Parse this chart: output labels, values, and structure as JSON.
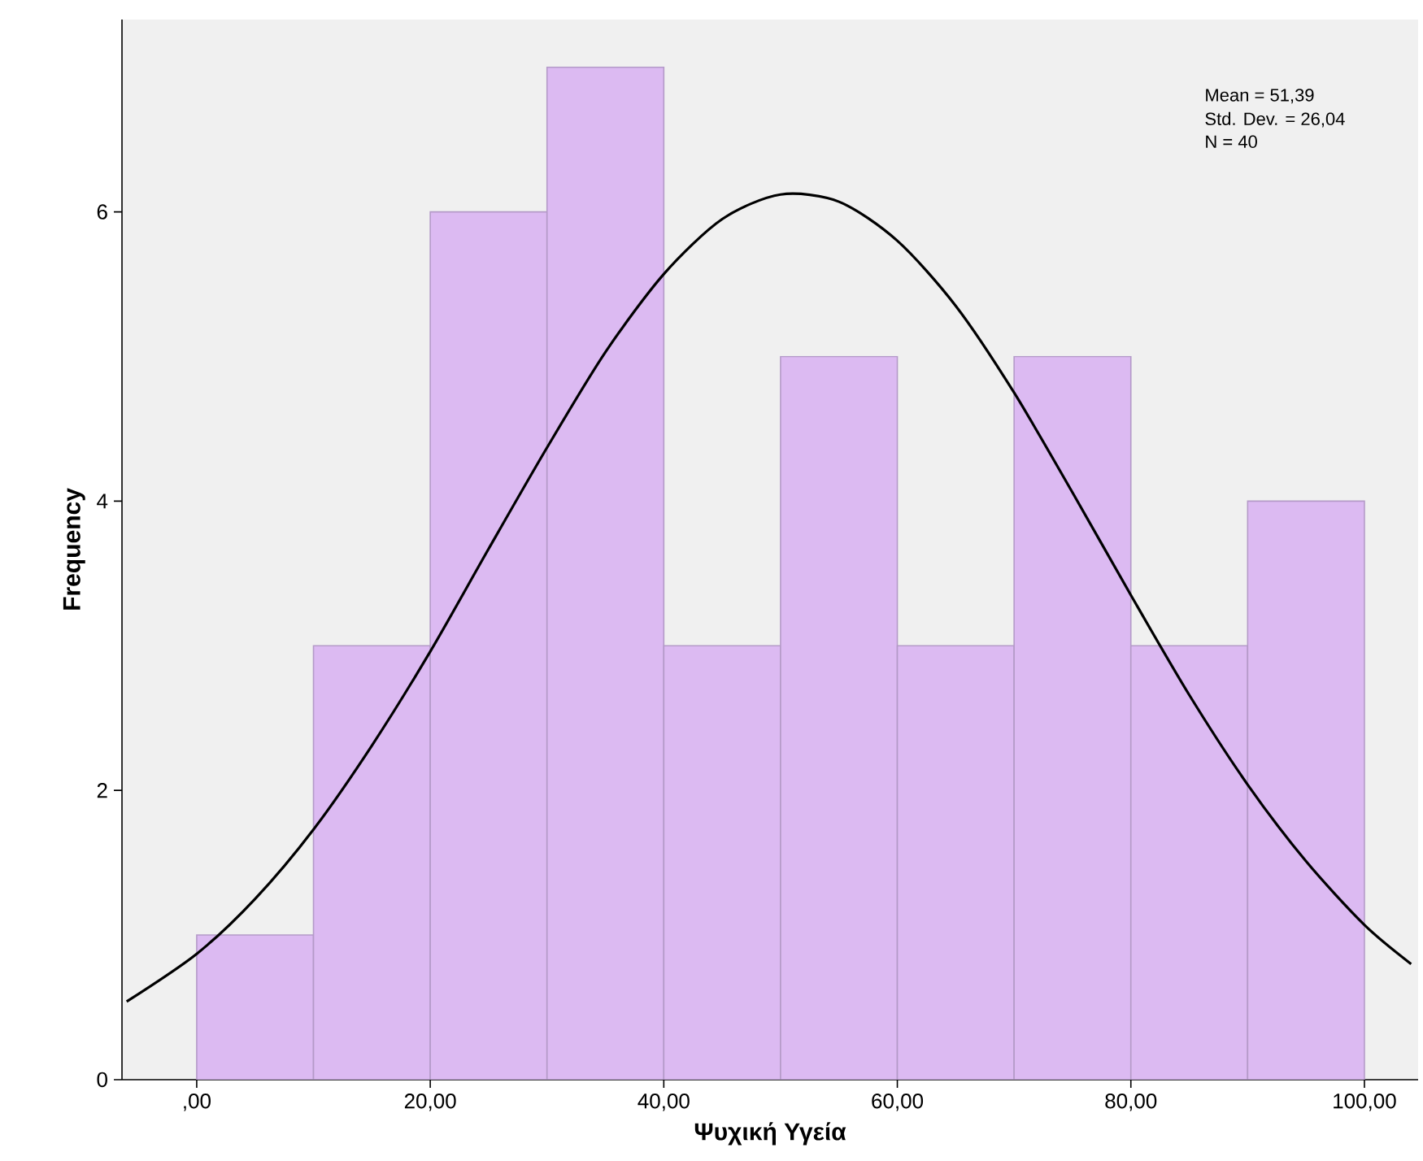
{
  "chart_data": {
    "type": "histogram",
    "xlabel": "Ψυχική Υγεία",
    "ylabel": "Frequency",
    "bins": [
      0,
      10,
      20,
      30,
      40,
      50,
      60,
      70,
      80,
      90,
      100
    ],
    "values": [
      1,
      3,
      6,
      7,
      3,
      5,
      3,
      5,
      3,
      4
    ],
    "color": "#dcbaf2",
    "series": [
      {
        "type": "line",
        "color": "#000000",
        "x": [
          -6,
          0,
          5,
          10,
          15,
          20,
          25,
          30,
          35,
          40,
          45,
          50,
          55,
          60,
          65,
          70,
          75,
          80,
          85,
          90,
          95,
          100,
          104
        ],
        "values": [
          0.54,
          0.87,
          1.25,
          1.73,
          2.31,
          2.96,
          3.67,
          4.37,
          5.03,
          5.57,
          5.95,
          6.12,
          6.07,
          5.8,
          5.35,
          4.75,
          4.06,
          3.35,
          2.66,
          2.04,
          1.51,
          1.07,
          0.8
        ]
      }
    ],
    "xlim": [
      -6.4,
      104.6
    ],
    "ylim": [
      0,
      7.33
    ],
    "xticks": [
      {
        "value": 0,
        "label": ",00"
      },
      {
        "value": 20,
        "label": "20,00"
      },
      {
        "value": 40,
        "label": "40,00"
      },
      {
        "value": 60,
        "label": "60,00"
      },
      {
        "value": 80,
        "label": "80,00"
      },
      {
        "value": 100,
        "label": "100,00"
      }
    ],
    "yticks": [
      0,
      2,
      4,
      6
    ],
    "annotations": [
      "Mean = 51,39",
      "Std. Dev. = 26,04",
      "N = 40"
    ]
  }
}
